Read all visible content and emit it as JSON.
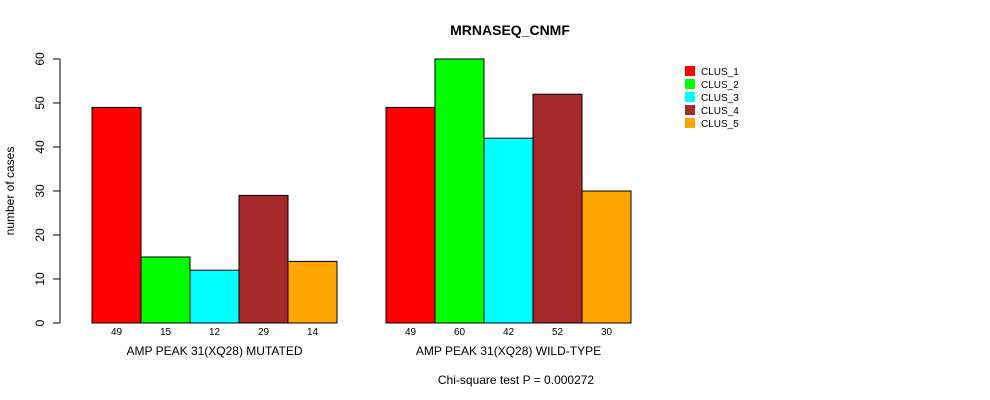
{
  "chart_data": {
    "type": "bar",
    "title": "MRNASEQ_CNMF",
    "ylabel": "number of cases",
    "ylim": [
      0,
      60
    ],
    "yticks": [
      "0",
      "10",
      "20",
      "30",
      "40",
      "50",
      "60"
    ],
    "series_names": [
      "CLUS_1",
      "CLUS_2",
      "CLUS_3",
      "CLUS_4",
      "CLUS_5"
    ],
    "colors": [
      "#ff0000",
      "#00ff00",
      "#00ffff",
      "#a52a2a",
      "#ffa500"
    ],
    "groups": [
      {
        "label": "AMP PEAK 31(XQ28) MUTATED",
        "values": [
          49,
          15,
          12,
          29,
          14
        ],
        "value_labels": [
          "49",
          "15",
          "12",
          "29",
          "14"
        ]
      },
      {
        "label": "AMP PEAK 31(XQ28) WILD-TYPE",
        "values": [
          49,
          60,
          42,
          52,
          30
        ],
        "value_labels": [
          "49",
          "60",
          "42",
          "52",
          "30"
        ]
      }
    ],
    "legend_position": "top-right",
    "footnote": "Chi-square test P = 0.000272"
  }
}
